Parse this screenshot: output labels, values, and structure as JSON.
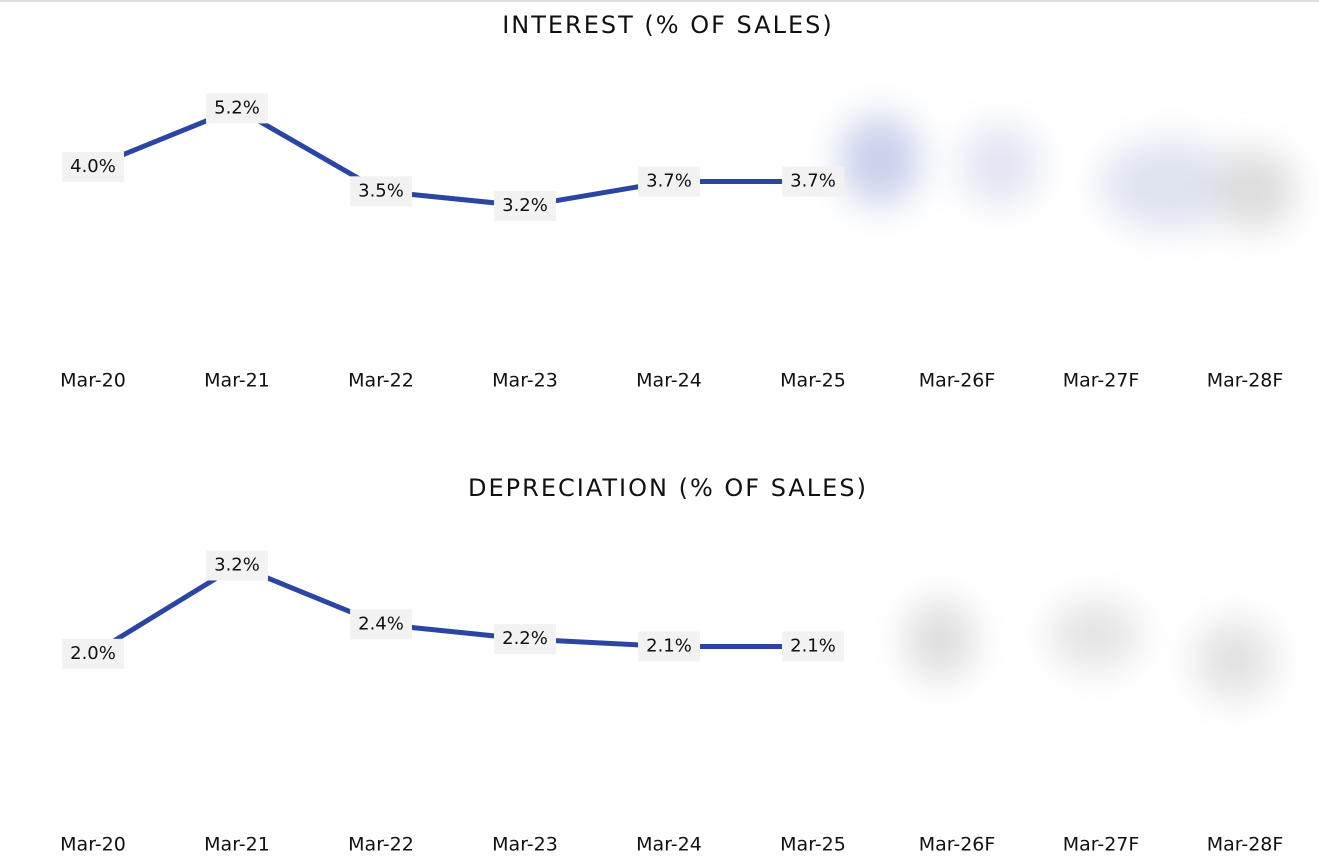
{
  "chart_data": [
    {
      "type": "line",
      "title": "INTEREST (% OF SALES)",
      "categories": [
        "Mar-20",
        "Mar-21",
        "Mar-22",
        "Mar-23",
        "Mar-24",
        "Mar-25",
        "Mar-26F",
        "Mar-27F",
        "Mar-28F"
      ],
      "values": [
        4.0,
        5.2,
        3.5,
        3.2,
        3.7,
        3.7,
        null,
        null,
        null
      ],
      "value_labels": [
        "4.0%",
        "5.2%",
        "3.5%",
        "3.2%",
        "3.7%",
        "3.7%",
        null,
        null,
        null
      ],
      "color": "#2b45a3",
      "ylim": [
        0,
        6.5
      ]
    },
    {
      "type": "line",
      "title": "DEPRECIATION (% OF SALES)",
      "categories": [
        "Mar-20",
        "Mar-21",
        "Mar-22",
        "Mar-23",
        "Mar-24",
        "Mar-25",
        "Mar-26F",
        "Mar-27F",
        "Mar-28F"
      ],
      "values": [
        2.0,
        3.2,
        2.4,
        2.2,
        2.1,
        2.1,
        null,
        null,
        null
      ],
      "value_labels": [
        "2.0%",
        "3.2%",
        "2.4%",
        "2.2%",
        "2.1%",
        "2.1%",
        null,
        null,
        null
      ],
      "color": "#2b45a3",
      "ylim": [
        0,
        3.75
      ]
    }
  ]
}
